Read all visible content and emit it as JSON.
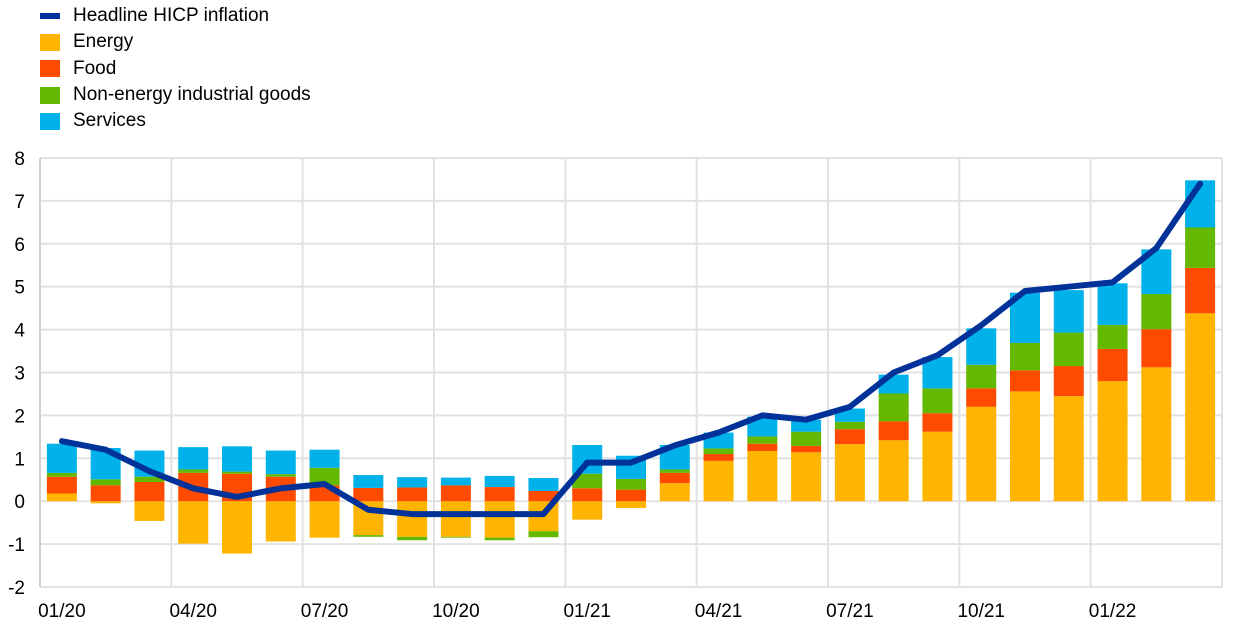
{
  "chart_data": {
    "type": "bar",
    "stacked": true,
    "title": "",
    "xlabel": "",
    "ylabel": "",
    "ylim": [
      -2,
      8
    ],
    "yticks": [
      -2,
      -1,
      0,
      1,
      2,
      3,
      4,
      5,
      6,
      7,
      8
    ],
    "grid": true,
    "legend_position": "top-left",
    "categories": [
      "01/20",
      "02/20",
      "03/20",
      "04/20",
      "05/20",
      "06/20",
      "07/20",
      "08/20",
      "09/20",
      "10/20",
      "11/20",
      "12/20",
      "01/21",
      "02/21",
      "03/21",
      "04/21",
      "05/21",
      "06/21",
      "07/21",
      "08/21",
      "09/21",
      "10/21",
      "11/21",
      "12/21",
      "01/22",
      "02/22",
      "03/22"
    ],
    "xtick_labels": [
      "01/20",
      "04/20",
      "07/20",
      "10/20",
      "01/21",
      "04/21",
      "07/21",
      "10/21",
      "01/22"
    ],
    "series": [
      {
        "name": "Energy",
        "kind": "bar",
        "color": "#FFB400",
        "values": [
          0.18,
          -0.05,
          -0.46,
          -0.99,
          -1.22,
          -0.94,
          -0.85,
          -0.79,
          -0.83,
          -0.83,
          -0.85,
          -0.7,
          -0.43,
          -0.16,
          0.42,
          0.94,
          1.17,
          1.14,
          1.33,
          1.42,
          1.62,
          2.2,
          2.56,
          2.45,
          2.8,
          3.12,
          4.38
        ]
      },
      {
        "name": "Food",
        "kind": "bar",
        "color": "#FF4B00",
        "values": [
          0.39,
          0.37,
          0.45,
          0.66,
          0.64,
          0.57,
          0.37,
          0.31,
          0.32,
          0.37,
          0.33,
          0.24,
          0.3,
          0.27,
          0.24,
          0.16,
          0.17,
          0.15,
          0.35,
          0.44,
          0.43,
          0.43,
          0.49,
          0.7,
          0.75,
          0.89,
          1.06
        ]
      },
      {
        "name": "Non-energy industrial goods",
        "kind": "bar",
        "color": "#65B800",
        "values": [
          0.09,
          0.14,
          0.12,
          0.08,
          0.05,
          0.06,
          0.41,
          -0.04,
          -0.08,
          -0.02,
          -0.06,
          -0.14,
          0.34,
          0.25,
          0.08,
          0.13,
          0.17,
          0.33,
          0.17,
          0.65,
          0.58,
          0.55,
          0.64,
          0.78,
          0.56,
          0.82,
          0.94
        ]
      },
      {
        "name": "Services",
        "kind": "bar",
        "color": "#00B1EA",
        "values": [
          0.68,
          0.73,
          0.61,
          0.52,
          0.59,
          0.55,
          0.42,
          0.3,
          0.24,
          0.18,
          0.26,
          0.3,
          0.67,
          0.54,
          0.57,
          0.37,
          0.46,
          0.28,
          0.31,
          0.44,
          0.73,
          0.85,
          1.17,
          0.99,
          0.97,
          1.04,
          1.1
        ]
      },
      {
        "name": "Headline HICP inflation",
        "kind": "line",
        "color": "#003299",
        "values": [
          1.4,
          1.2,
          0.7,
          0.3,
          0.1,
          0.3,
          0.4,
          -0.2,
          -0.3,
          -0.3,
          -0.3,
          -0.3,
          0.9,
          0.9,
          1.3,
          1.6,
          2.0,
          1.9,
          2.2,
          3.0,
          3.4,
          4.1,
          4.9,
          5.0,
          5.1,
          5.9,
          7.4
        ]
      }
    ]
  }
}
